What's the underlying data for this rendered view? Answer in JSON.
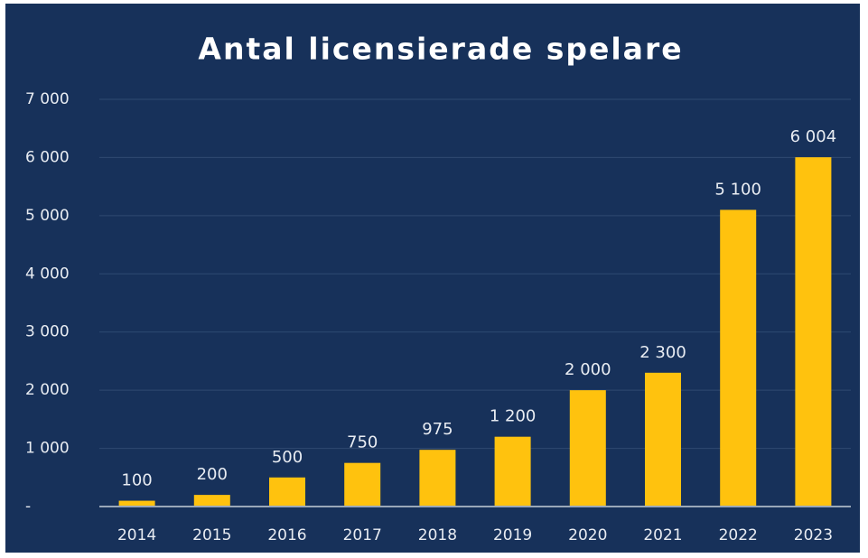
{
  "chart_data": {
    "type": "bar",
    "title": "Antal licensierade spelare",
    "categories": [
      "2014",
      "2015",
      "2016",
      "2017",
      "2018",
      "2019",
      "2020",
      "2021",
      "2022",
      "2023"
    ],
    "values": [
      100,
      200,
      500,
      750,
      975,
      1200,
      2000,
      2300,
      5100,
      6004
    ],
    "value_labels": [
      "100",
      "200",
      "500",
      "750",
      "975",
      "1 200",
      "2 000",
      "2 300",
      "5 100",
      "6 004"
    ],
    "color": "#ffc20e",
    "ylim": [
      0,
      7000
    ],
    "yticks": [
      {
        "value": 0,
        "label": "-"
      },
      {
        "value": 1000,
        "label": "1 000"
      },
      {
        "value": 2000,
        "label": "2 000"
      },
      {
        "value": 3000,
        "label": "3 000"
      },
      {
        "value": 4000,
        "label": "4 000"
      },
      {
        "value": 5000,
        "label": "5 000"
      },
      {
        "value": 6000,
        "label": "6 000"
      },
      {
        "value": 7000,
        "label": "7 000"
      }
    ],
    "grid": true
  }
}
